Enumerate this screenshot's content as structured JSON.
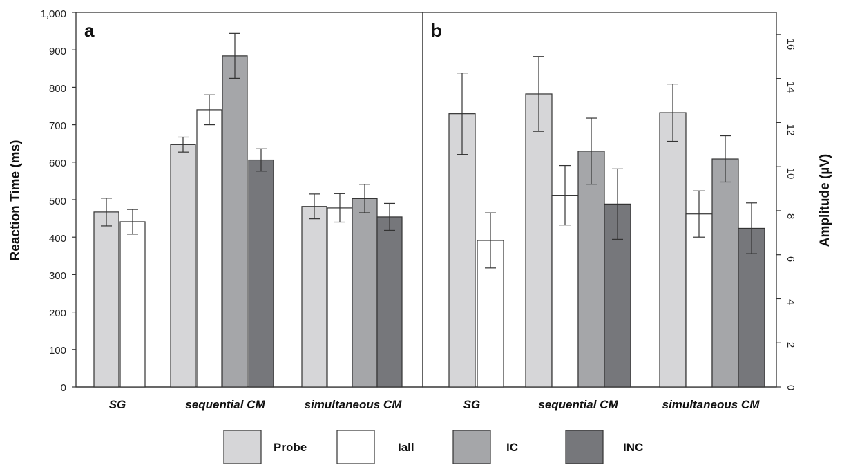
{
  "chart_data": [
    {
      "panel": "a",
      "type": "bar",
      "ylabel": "Reaction Time (ms)",
      "ylim": [
        0,
        1000
      ],
      "yticks": [
        "0",
        "100",
        "200",
        "300",
        "400",
        "500",
        "600",
        "700",
        "800",
        "900",
        "1,000"
      ],
      "categories": [
        "SG",
        "sequential CM",
        "simultaneous CM"
      ],
      "series": [
        {
          "name": "Probe",
          "values": [
            467,
            647,
            482
          ],
          "errors": [
            37,
            20,
            33
          ]
        },
        {
          "name": "Iall",
          "values": [
            441,
            740,
            478
          ],
          "errors": [
            33,
            40,
            38
          ]
        },
        {
          "name": "IC",
          "values": [
            null,
            884,
            503
          ],
          "errors": [
            null,
            60,
            38
          ]
        },
        {
          "name": "INC",
          "values": [
            null,
            606,
            454
          ],
          "errors": [
            null,
            30,
            36
          ]
        }
      ]
    },
    {
      "panel": "b",
      "type": "bar",
      "ylabel": "Amplitude (µV)",
      "ylim": [
        0,
        17
      ],
      "yticks": [
        "0",
        "2",
        "4",
        "6",
        "8",
        "10",
        "12",
        "14",
        "16"
      ],
      "categories": [
        "SG",
        "sequential CM",
        "simultaneous CM"
      ],
      "series": [
        {
          "name": "Probe",
          "values": [
            12.4,
            13.3,
            12.45
          ],
          "errors": [
            1.85,
            1.7,
            1.3
          ]
        },
        {
          "name": "Iall",
          "values": [
            6.65,
            8.7,
            7.85
          ],
          "errors": [
            1.25,
            1.35,
            1.05
          ]
        },
        {
          "name": "IC",
          "values": [
            null,
            10.7,
            10.35
          ],
          "errors": [
            null,
            1.5,
            1.05
          ]
        },
        {
          "name": "INC",
          "values": [
            null,
            8.3,
            7.2
          ],
          "errors": [
            null,
            1.6,
            1.15
          ]
        }
      ]
    }
  ],
  "legend": {
    "items": [
      {
        "label": "Probe",
        "color": "#d6d6d8"
      },
      {
        "label": "Iall",
        "color": "#ffffff"
      },
      {
        "label": "IC",
        "color": "#a5a6a9"
      },
      {
        "label": "INC",
        "color": "#76777b"
      }
    ]
  },
  "colors": {
    "Probe": "#d6d6d8",
    "Iall": "#ffffff",
    "IC": "#a5a6a9",
    "INC": "#76777b",
    "frame": "#333333"
  }
}
